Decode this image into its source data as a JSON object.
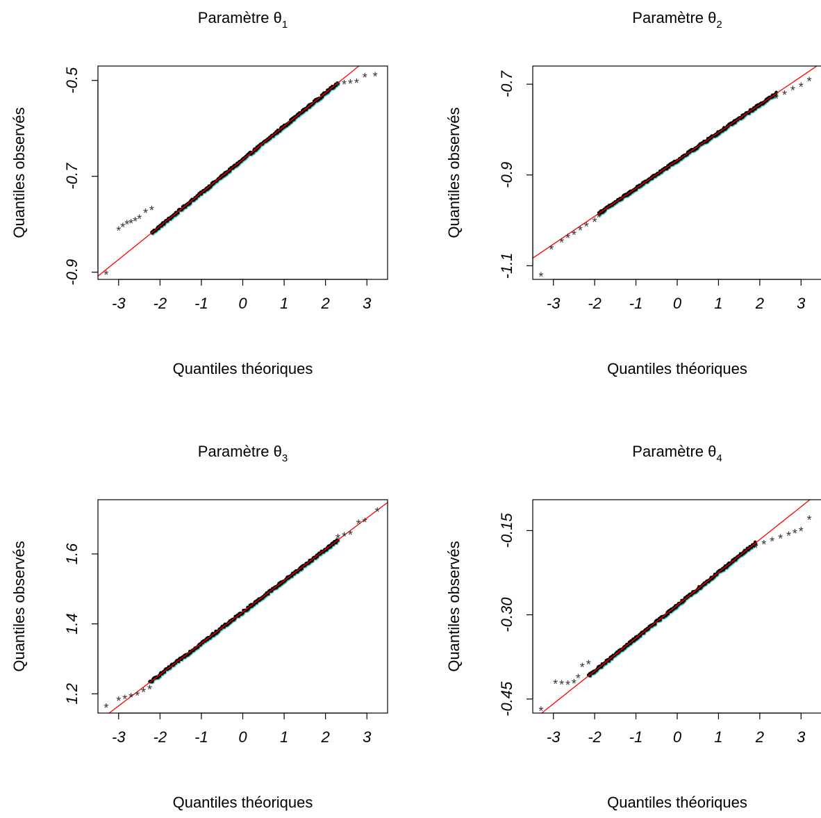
{
  "figure": {
    "xlabel": "Quantiles théoriques",
    "ylabel": "Quantiles observés"
  },
  "chart_data": [
    {
      "type": "scatter",
      "title": "Paramètre θ",
      "title_sub": "1",
      "xlabel": "Quantiles théoriques",
      "ylabel": "Quantiles observés",
      "xlim": [
        -3.5,
        3.5
      ],
      "ylim": [
        -0.915,
        -0.47
      ],
      "xticks": [
        -3,
        -2,
        -1,
        0,
        1,
        2,
        3
      ],
      "yticks": [
        -0.9,
        -0.7,
        -0.5
      ],
      "ytick_labels": [
        "-0.9",
        "-0.7",
        "-0.5"
      ],
      "reference_line": {
        "intercept": -0.665,
        "slope": 0.0695,
        "color": "#ff0000"
      },
      "point_marker": "*",
      "point_color": "#000000",
      "points": [
        [
          -3.3,
          -0.902
        ],
        [
          -3.0,
          -0.81
        ],
        [
          -2.9,
          -0.803
        ],
        [
          -2.8,
          -0.797
        ],
        [
          -2.7,
          -0.795
        ],
        [
          -2.6,
          -0.79
        ],
        [
          -2.5,
          -0.785
        ],
        [
          -2.35,
          -0.773
        ],
        [
          -2.2,
          -0.767
        ],
        [
          2.3,
          -0.508
        ],
        [
          2.45,
          -0.505
        ],
        [
          2.6,
          -0.503
        ],
        [
          2.75,
          -0.502
        ],
        [
          2.95,
          -0.49
        ],
        [
          3.2,
          -0.488
        ]
      ]
    },
    {
      "type": "scatter",
      "title": "Paramètre θ",
      "title_sub": "2",
      "xlabel": "Quantiles théoriques",
      "ylabel": "Quantiles observés",
      "xlim": [
        -3.5,
        3.5
      ],
      "ylim": [
        -1.13,
        -0.66
      ],
      "xticks": [
        -3,
        -2,
        -1,
        0,
        1,
        2,
        3
      ],
      "yticks": [
        -1.1,
        -0.9,
        -0.7
      ],
      "ytick_labels": [
        "-1.1",
        "-0.9",
        "-0.7"
      ],
      "reference_line": {
        "intercept": -0.868,
        "slope": 0.0615,
        "color": "#ff0000"
      },
      "point_marker": "*",
      "point_color": "#000000",
      "points": [
        [
          -3.3,
          -1.12
        ],
        [
          -3.05,
          -1.06
        ],
        [
          -2.8,
          -1.045
        ],
        [
          -2.65,
          -1.035
        ],
        [
          -2.5,
          -1.028
        ],
        [
          -2.35,
          -1.018
        ],
        [
          -2.2,
          -1.01
        ],
        [
          -2.0,
          -1.0
        ],
        [
          -1.9,
          -0.99
        ],
        [
          2.4,
          -0.728
        ],
        [
          2.6,
          -0.72
        ],
        [
          2.8,
          -0.71
        ],
        [
          3.0,
          -0.702
        ],
        [
          3.2,
          -0.69
        ]
      ]
    },
    {
      "type": "scatter",
      "title": "Paramètre θ",
      "title_sub": "3",
      "xlabel": "Quantiles théoriques",
      "ylabel": "Quantiles observés",
      "xlim": [
        -3.5,
        3.5
      ],
      "ylim": [
        1.145,
        1.755
      ],
      "xticks": [
        -3,
        -2,
        -1,
        0,
        1,
        2,
        3
      ],
      "yticks": [
        1.2,
        1.4,
        1.6
      ],
      "ytick_labels": [
        "1.2",
        "1.4",
        "1.6"
      ],
      "reference_line": {
        "intercept": 1.434,
        "slope": 0.0895,
        "color": "#ff0000"
      },
      "point_marker": "*",
      "point_color": "#000000",
      "points": [
        [
          -3.3,
          1.165
        ],
        [
          -3.0,
          1.185
        ],
        [
          -2.85,
          1.19
        ],
        [
          -2.7,
          1.195
        ],
        [
          -2.55,
          1.2
        ],
        [
          -2.4,
          1.21
        ],
        [
          -2.25,
          1.218
        ],
        [
          2.3,
          1.65
        ],
        [
          2.45,
          1.655
        ],
        [
          2.6,
          1.66
        ],
        [
          2.8,
          1.69
        ],
        [
          2.95,
          1.695
        ],
        [
          3.25,
          1.725
        ]
      ]
    },
    {
      "type": "scatter",
      "title": "Paramètre θ",
      "title_sub": "4",
      "xlabel": "Quantiles théoriques",
      "ylabel": "Quantiles observés",
      "xlim": [
        -3.5,
        3.5
      ],
      "ylim": [
        -0.475,
        -0.095
      ],
      "xticks": [
        -3,
        -2,
        -1,
        0,
        1,
        2,
        3
      ],
      "yticks": [
        -0.45,
        -0.3,
        -0.15
      ],
      "ytick_labels": [
        "-0.45",
        "-0.30",
        "-0.15"
      ],
      "reference_line": {
        "intercept": -0.283,
        "slope": 0.0585,
        "color": "#ff0000"
      },
      "point_marker": "*",
      "point_color": "#000000",
      "points": [
        [
          -3.3,
          -0.468
        ],
        [
          -2.95,
          -0.42
        ],
        [
          -2.8,
          -0.421
        ],
        [
          -2.65,
          -0.422
        ],
        [
          -2.5,
          -0.419
        ],
        [
          -2.4,
          -0.41
        ],
        [
          -2.3,
          -0.39
        ],
        [
          -2.15,
          -0.385
        ],
        [
          1.9,
          -0.178
        ],
        [
          2.1,
          -0.172
        ],
        [
          2.3,
          -0.166
        ],
        [
          2.5,
          -0.161
        ],
        [
          2.7,
          -0.156
        ],
        [
          2.85,
          -0.152
        ],
        [
          3.0,
          -0.148
        ],
        [
          3.2,
          -0.128
        ]
      ]
    }
  ]
}
